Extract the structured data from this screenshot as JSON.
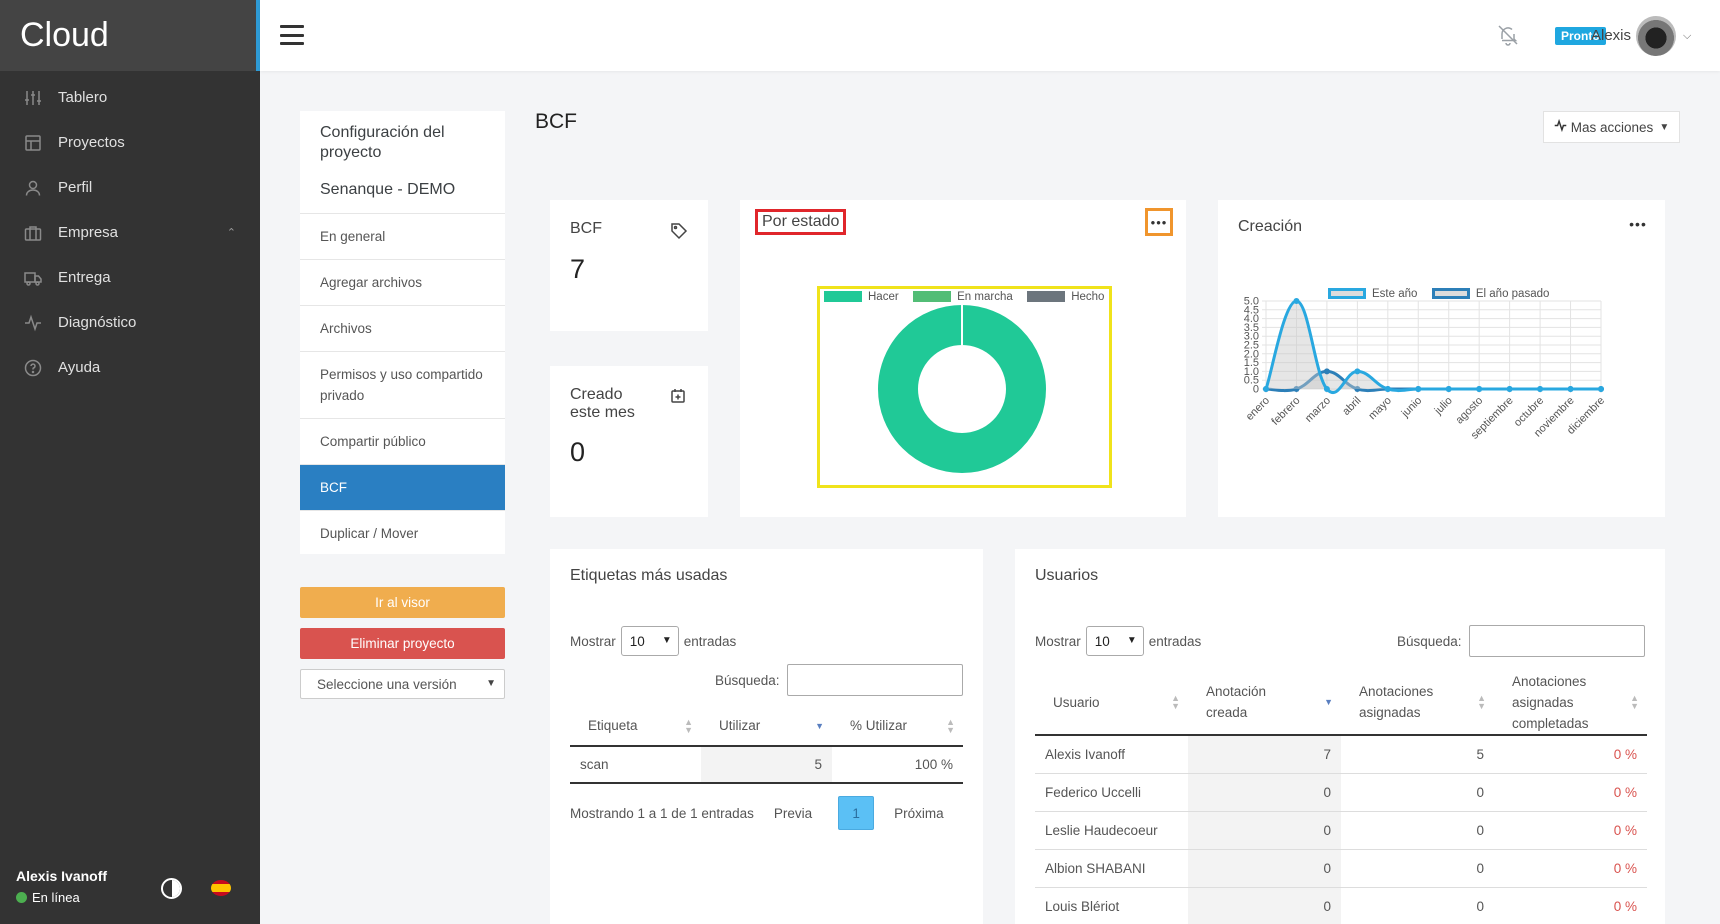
{
  "brand": "Cloud",
  "sidebar": {
    "items": [
      {
        "label": "Tablero",
        "icon": "sliders-icon"
      },
      {
        "label": "Proyectos",
        "icon": "layout-icon"
      },
      {
        "label": "Perfil",
        "icon": "user-icon"
      },
      {
        "label": "Empresa",
        "icon": "briefcase-icon"
      },
      {
        "label": "Entrega",
        "icon": "truck-icon"
      },
      {
        "label": "Diagnóstico",
        "icon": "activity-icon"
      },
      {
        "label": "Ayuda",
        "icon": "help-circle-icon"
      }
    ],
    "footer": {
      "user": "Alexis Ivanoff",
      "status": "En línea"
    }
  },
  "topbar": {
    "badge": "Pronto",
    "user": "Alexis"
  },
  "project_menu": {
    "title": "Configuración del proyecto",
    "project_name": "Senanque - DEMO",
    "items": [
      {
        "label": "En general"
      },
      {
        "label": "Agregar archivos"
      },
      {
        "label": "Archivos"
      },
      {
        "label": "Permisos y uso compartido privado"
      },
      {
        "label": "Compartir público"
      },
      {
        "label": "BCF"
      },
      {
        "label": "Duplicar / Mover"
      }
    ],
    "go_viewer": "Ir al visor",
    "delete_project": "Eliminar proyecto",
    "version_select": "Seleccione una versión"
  },
  "page": {
    "title": "BCF",
    "more_actions": "Mas acciones"
  },
  "stats": {
    "bcf": {
      "label": "BCF",
      "value": "7"
    },
    "created": {
      "label": "Creado este mes",
      "value": "0"
    }
  },
  "status_chart": {
    "title": "Por estado",
    "colors": {
      "hacer": "#20c997",
      "en_marcha": "#52bd76",
      "hecho": "#6c757d"
    },
    "chart_data": {
      "type": "pie",
      "labels": [
        "Hacer",
        "En marcha",
        "Hecho"
      ],
      "values": [
        7,
        0,
        0
      ]
    }
  },
  "creation_chart": {
    "title": "Creación",
    "chart_data": {
      "type": "line",
      "categories": [
        "enero",
        "febrero",
        "marzo",
        "abril",
        "mayo",
        "junio",
        "julio",
        "agosto",
        "septiembre",
        "octubre",
        "noviembre",
        "diciembre"
      ],
      "yticks": [
        "5.0",
        "4.5",
        "4.0",
        "3.5",
        "3.0",
        "2.5",
        "2.0",
        "1.5",
        "1.0",
        "0.5",
        "0"
      ],
      "ylim": [
        0,
        5
      ],
      "series": [
        {
          "name": "Este año",
          "values": [
            0,
            5,
            0,
            1,
            0,
            0,
            0,
            0,
            0,
            0,
            0,
            0
          ],
          "color": "#29a8e0"
        },
        {
          "name": "El año pasado",
          "values": [
            0,
            0,
            1,
            0,
            0,
            0,
            0,
            0,
            0,
            0,
            0,
            0
          ],
          "color": "#2c7fb8"
        }
      ]
    }
  },
  "tags_table": {
    "title": "Etiquetas más usadas",
    "show": "Mostrar",
    "entries_value": "10",
    "entries": "entradas",
    "search_label": "Búsqueda:",
    "headers": [
      "Etiqueta",
      "Utilizar",
      "% Utilizar"
    ],
    "rows": [
      {
        "tag": "scan",
        "use": "5",
        "pct": "100 %"
      }
    ],
    "info": "Mostrando 1 a 1 de 1 entradas",
    "prev": "Previa",
    "page": "1",
    "next": "Próxima"
  },
  "users_table": {
    "title": "Usuarios",
    "show": "Mostrar",
    "entries_value": "10",
    "entries": "entradas",
    "search_label": "Búsqueda:",
    "headers": [
      "Usuario",
      "Anotación creada",
      "Anotaciones asignadas",
      "Anotaciones asignadas completadas"
    ],
    "rows": [
      {
        "user": "Alexis Ivanoff",
        "created": "7",
        "assigned": "5",
        "completed": "0 %"
      },
      {
        "user": "Federico Uccelli",
        "created": "0",
        "assigned": "0",
        "completed": "0 %"
      },
      {
        "user": "Leslie Haudecoeur",
        "created": "0",
        "assigned": "0",
        "completed": "0 %"
      },
      {
        "user": "Albion SHABANI",
        "created": "0",
        "assigned": "0",
        "completed": "0 %"
      },
      {
        "user": "Louis Blériot",
        "created": "0",
        "assigned": "0",
        "completed": "0 %"
      }
    ]
  }
}
